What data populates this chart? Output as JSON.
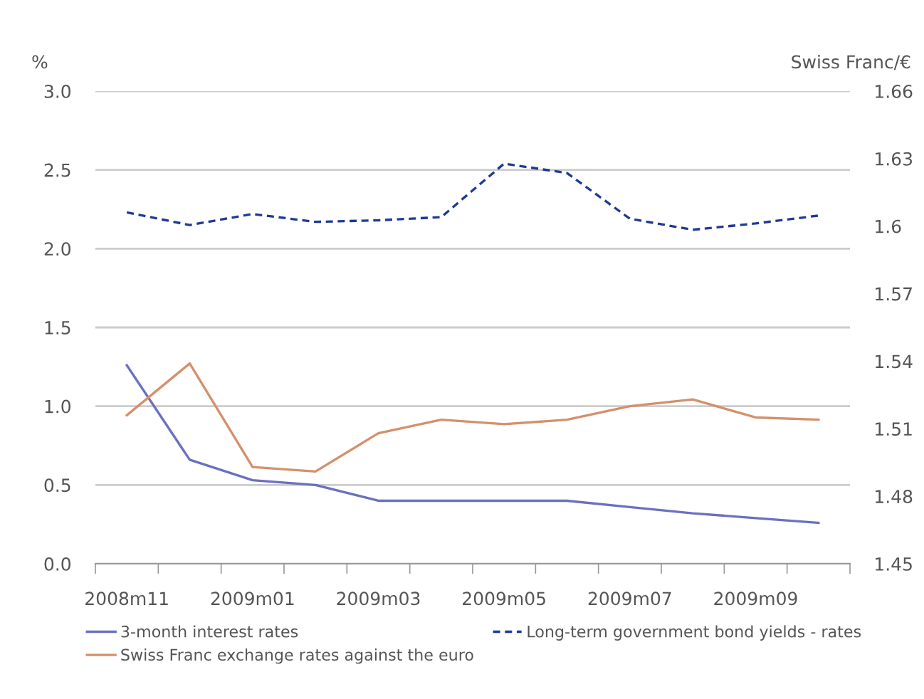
{
  "chart_data": {
    "type": "line",
    "ylabel": "%",
    "y2label": "Swiss Franc/€",
    "categories": [
      "2008m11",
      null,
      "2009m01",
      null,
      "2009m03",
      null,
      "2009m05",
      null,
      "2009m07",
      null,
      "2009m09",
      null
    ],
    "series": [
      {
        "name": "3-month interest rates",
        "color": "#6b70c0",
        "values": [
          1.26,
          0.66,
          0.53,
          0.5,
          0.4,
          0.4,
          0.4,
          0.4,
          0.36,
          0.32,
          0.29,
          0.26
        ]
      },
      {
        "name": "Long-term government bond yields - rates",
        "color": "#1f3a93",
        "line_style": "dashed",
        "values": [
          2.23,
          2.15,
          2.22,
          2.17,
          2.18,
          2.2,
          2.54,
          2.48,
          2.19,
          2.12,
          2.16,
          2.21
        ]
      },
      {
        "name": "Swiss Franc exchange rates against the euro",
        "color": "#d4906c",
        "axis": "y2",
        "values": [
          1.516,
          1.539,
          1.493,
          1.491,
          1.508,
          1.514,
          1.512,
          1.514,
          1.52,
          1.523,
          1.515,
          1.514
        ]
      }
    ],
    "ylim": [
      0,
      3
    ],
    "yticks": [
      {
        "value": 0,
        "label": "0.0"
      },
      {
        "value": 0.5,
        "label": "0.5"
      },
      {
        "value": 1,
        "label": "1.0"
      },
      {
        "value": 1.5,
        "label": "1.5"
      },
      {
        "value": 2,
        "label": "2.0"
      },
      {
        "value": 2.5,
        "label": "2.5"
      },
      {
        "value": 3,
        "label": "3.0"
      }
    ],
    "y2lim": [
      1.45,
      1.66
    ],
    "y2ticks": [
      1.45,
      1.48,
      1.51,
      1.54,
      1.57,
      1.6,
      1.63,
      1.66
    ],
    "grid": "y",
    "legend": "bottom",
    "marker": "none"
  }
}
